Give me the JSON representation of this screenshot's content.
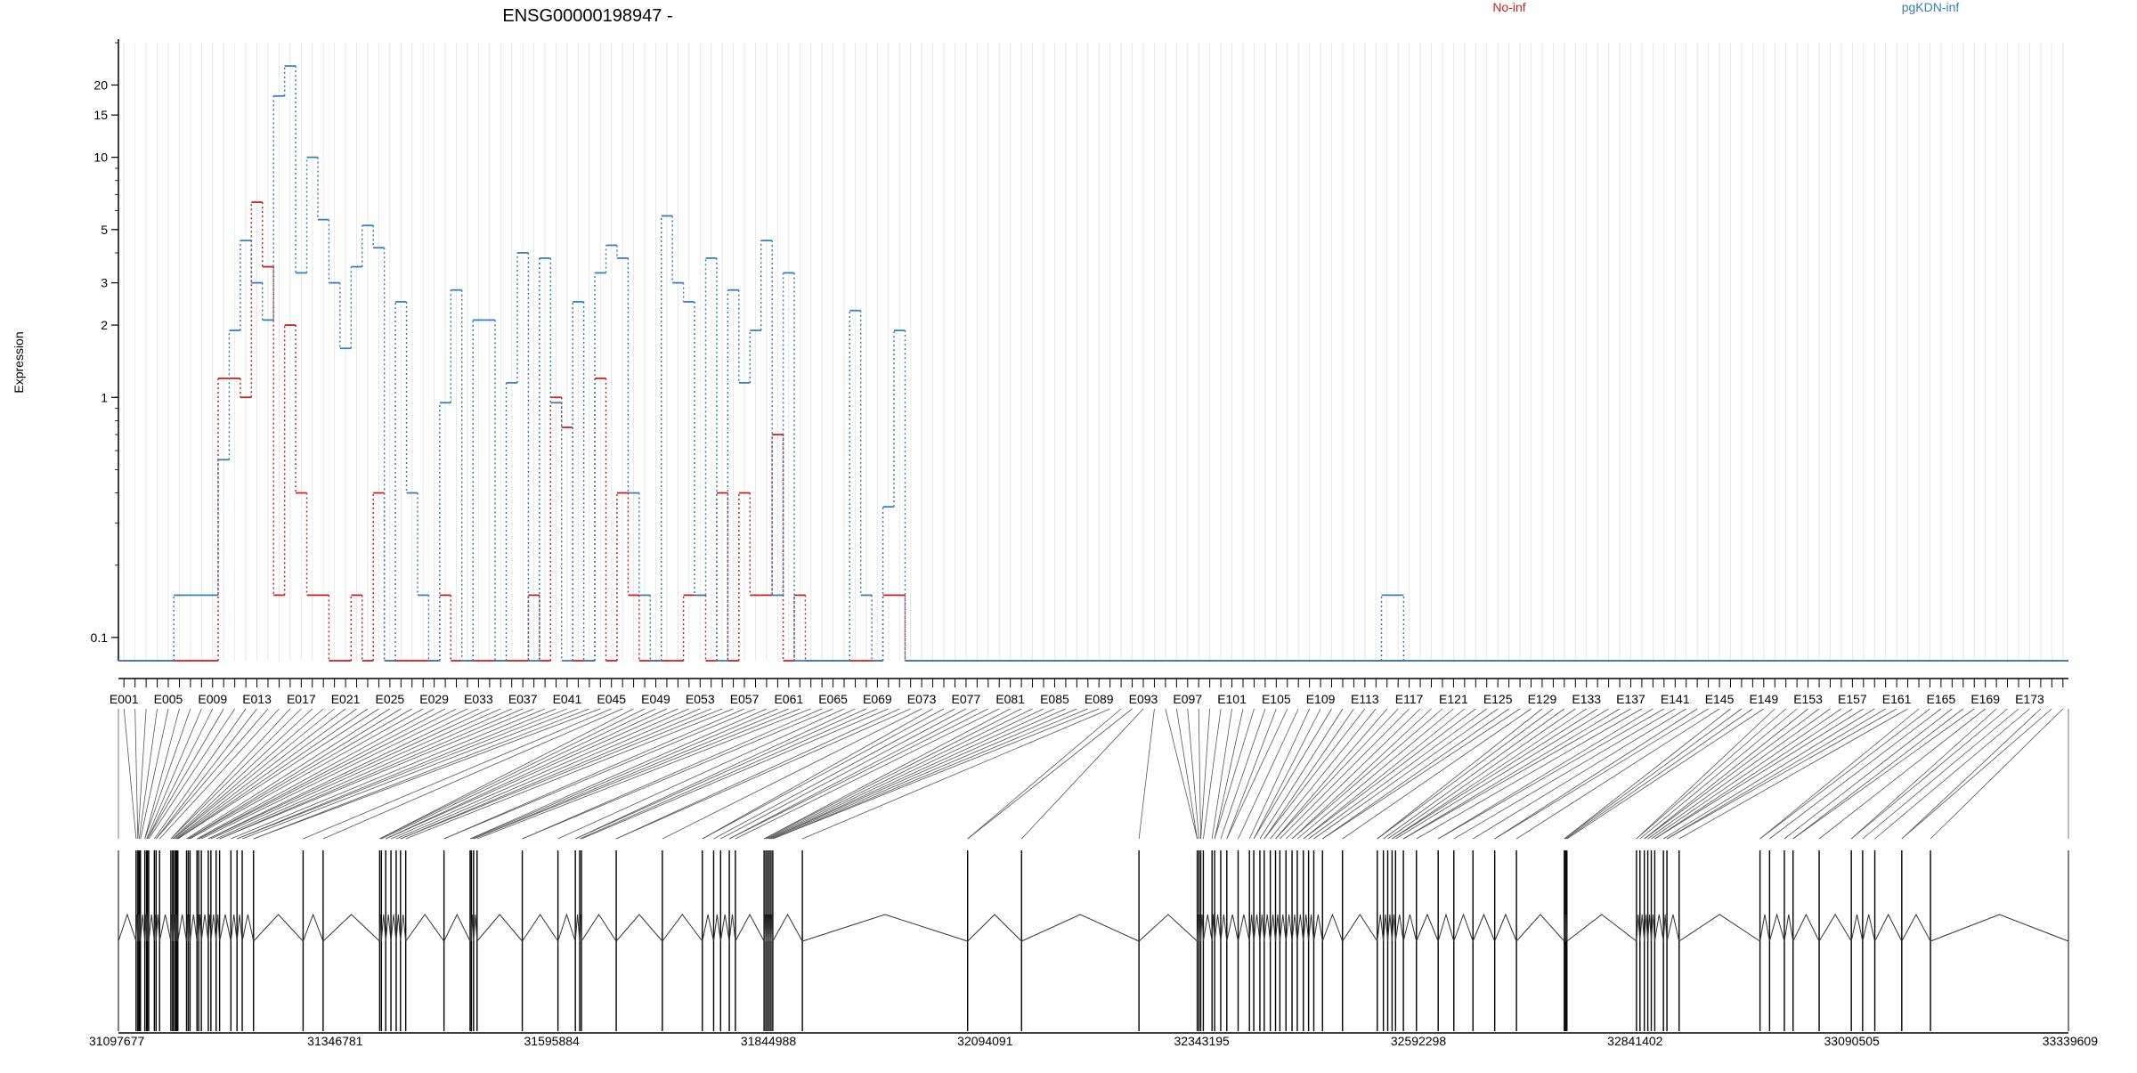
{
  "chart_data": {
    "type": "line",
    "title": "ENSG00000198947 -",
    "xlabel": "",
    "ylabel": "Expression",
    "y_scale": "log",
    "yticks": [
      0.1,
      1,
      2,
      3,
      5,
      10,
      15,
      20
    ],
    "ylim": [
      0.08,
      30
    ],
    "legend_position": "top",
    "series": [
      {
        "name": "No-inf",
        "color": "#cc2222",
        "values": [
          0.08,
          0.08,
          0.08,
          0.08,
          0.08,
          0.08,
          0.08,
          0.08,
          0.08,
          1.2,
          1.2,
          1.0,
          6.5,
          3.5,
          0.15,
          2.0,
          0.4,
          0.15,
          0.15,
          0.08,
          0.08,
          0.15,
          0.08,
          0.4,
          0.08,
          0.08,
          0.08,
          0.08,
          0.08,
          0.15,
          0.08,
          0.08,
          0.08,
          0.08,
          0.08,
          0.08,
          0.08,
          0.15,
          0.08,
          1.0,
          0.75,
          0.08,
          0.08,
          1.2,
          0.08,
          0.4,
          0.15,
          0.08,
          0.08,
          0.08,
          0.08,
          0.15,
          0.15,
          0.08,
          0.4,
          0.08,
          0.4,
          0.15,
          0.15,
          0.7,
          0.08,
          0.15,
          0.08,
          0.08,
          0.08,
          0.08,
          0.08,
          0.08,
          0.08,
          0.15,
          0.15
        ]
      },
      {
        "name": "pgKDN-inf",
        "color": "#3a7ebf",
        "values": [
          0.08,
          0.08,
          0.08,
          0.08,
          0.08,
          0.15,
          0.15,
          0.15,
          0.15,
          0.55,
          1.9,
          4.5,
          3.0,
          2.1,
          18.0,
          24.0,
          3.3,
          10.0,
          5.5,
          3.0,
          1.6,
          3.5,
          5.2,
          4.2,
          0.08,
          2.5,
          0.4,
          0.15,
          0.08,
          0.95,
          2.8,
          0.08,
          2.1,
          2.1,
          0.08,
          1.15,
          4.0,
          0.08,
          3.8,
          0.95,
          0.08,
          2.5,
          0.08,
          3.3,
          4.3,
          3.8,
          0.4,
          0.15,
          0.08,
          5.7,
          3.0,
          2.5,
          0.15,
          3.8,
          0.08,
          2.8,
          1.15,
          1.9,
          4.5,
          0.15,
          3.3,
          0.08,
          0.08,
          0.08,
          0.08,
          0.08,
          2.3,
          0.15,
          0.08,
          0.35,
          1.9
        ],
        "extra_segment": {
          "start_exon": "E115",
          "end_exon": "E116",
          "value": 0.15
        }
      }
    ],
    "exon_labels": [
      "E001",
      "E005",
      "E009",
      "E013",
      "E017",
      "E021",
      "E025",
      "E029",
      "E033",
      "E037",
      "E041",
      "E045",
      "E049",
      "E053",
      "E057",
      "E061",
      "E065",
      "E069",
      "E073",
      "E077",
      "E081",
      "E085",
      "E089",
      "E093",
      "E097",
      "E101",
      "E105",
      "E109",
      "E113",
      "E117",
      "E121",
      "E125",
      "E129",
      "E133",
      "E137",
      "E141",
      "E145",
      "E149",
      "E153",
      "E157",
      "E161",
      "E165",
      "E169",
      "E173"
    ],
    "exon_count": 176,
    "genomic_axis": {
      "range": [
        31097677,
        33339609
      ],
      "tick_labels": [
        "31097677",
        "31346781",
        "31595884",
        "31844988",
        "32094091",
        "32343195",
        "32592298",
        "32841402",
        "33090505",
        "33339609"
      ]
    },
    "gene_exon_positions": [
      31118000,
      31120000,
      31121500,
      31123000,
      31128000,
      31130000,
      31131000,
      31132500,
      31139000,
      31141000,
      31145000,
      31158000,
      31160000,
      31161000,
      31163000,
      31164500,
      31166000,
      31176000,
      31178000,
      31180000,
      31188000,
      31190000,
      31193000,
      31201000,
      31204000,
      31210000,
      31214000,
      31227000,
      31234000,
      31240000,
      31253000,
      31310000,
      31333000,
      31398000,
      31400000,
      31405000,
      31411000,
      31417000,
      31422000,
      31428000,
      31472000,
      31502000,
      31503500,
      31506000,
      31510000,
      31562000,
      31603000,
      31623000,
      31628000,
      31630000,
      31670000,
      31723000,
      31769000,
      31782000,
      31790000,
      31800000,
      31807000,
      31840000,
      31842000,
      31844000,
      31846000,
      31848000,
      31850000,
      31884000,
      32074000,
      32136000,
      32271000,
      32338000,
      32340000,
      32342000,
      32345000,
      32355000,
      32358000,
      32365000,
      32372000,
      32385000,
      32398000,
      32403000,
      32410000,
      32415000,
      32422000,
      32428000,
      32433000,
      32440000,
      32447000,
      32453000,
      32460000,
      32466000,
      32472000,
      32482000,
      32505000,
      32545000,
      32552000,
      32557000,
      32562000,
      32566000,
      32575000,
      32590000,
      32615000,
      32633000,
      32655000,
      32680000,
      32705000,
      32760000,
      32761500,
      32763000,
      32843000,
      32847000,
      32852000,
      32856000,
      32860000,
      32864000,
      32874000,
      32878000,
      32892000,
      32985000,
      32996000,
      33013000,
      33023000,
      33053000,
      33090000,
      33103000,
      33117000,
      33148000,
      33181000
    ]
  }
}
